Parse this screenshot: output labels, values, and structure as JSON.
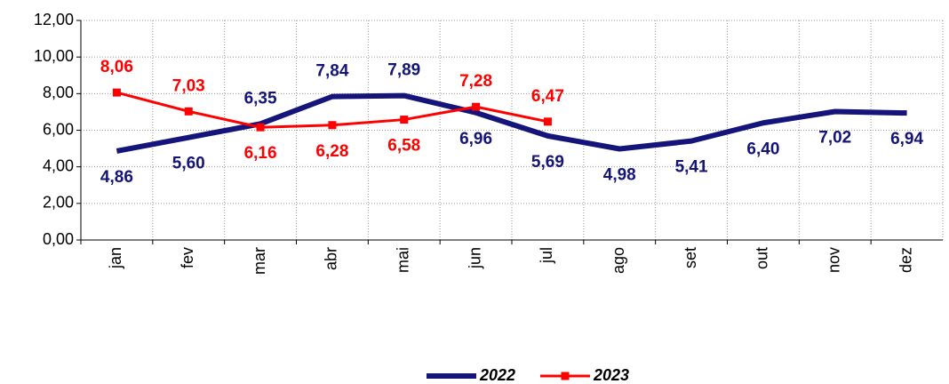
{
  "chart_data": {
    "type": "line",
    "categories": [
      "jan",
      "fev",
      "mar",
      "abr",
      "mai",
      "jun",
      "jul",
      "ago",
      "set",
      "out",
      "nov",
      "dez"
    ],
    "series": [
      {
        "name": "2022",
        "color": "#14147a",
        "values": [
          4.86,
          5.6,
          6.35,
          7.84,
          7.89,
          6.96,
          5.69,
          4.98,
          5.41,
          6.4,
          7.02,
          6.94
        ],
        "value_labels": [
          "4,86",
          "5,60",
          "6,35",
          "7,84",
          "7,89",
          "6,96",
          "5,69",
          "4,98",
          "5,41",
          "6,40",
          "7,02",
          "6,94"
        ]
      },
      {
        "name": "2023",
        "color": "#ff0000",
        "values": [
          8.06,
          7.03,
          6.16,
          6.28,
          6.58,
          7.28,
          6.47,
          null,
          null,
          null,
          null,
          null
        ],
        "value_labels": [
          "8,06",
          "7,03",
          "6,16",
          "6,28",
          "6,58",
          "7,28",
          "6,47",
          null,
          null,
          null,
          null,
          null
        ]
      }
    ],
    "ylim": [
      0,
      12
    ],
    "yticks": [
      {
        "value": 0,
        "label": "0,00"
      },
      {
        "value": 2,
        "label": "2,00"
      },
      {
        "value": 4,
        "label": "4,00"
      },
      {
        "value": 6,
        "label": "6,00"
      },
      {
        "value": 8,
        "label": "8,00"
      },
      {
        "value": 10,
        "label": "10,00"
      },
      {
        "value": 12,
        "label": "12,00"
      }
    ],
    "grid": true,
    "legend": "bottom"
  }
}
